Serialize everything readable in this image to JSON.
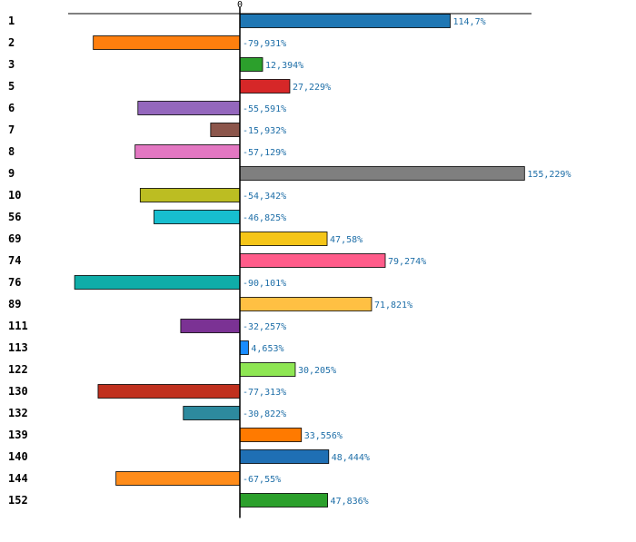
{
  "chart_data": {
    "type": "bar",
    "orientation": "horizontal",
    "title": "",
    "xlabel": "",
    "ylabel": "",
    "zero_tick_label": "0",
    "xlim": [
      -100,
      165
    ],
    "grid": false,
    "categories": [
      "1",
      "2",
      "3",
      "5",
      "6",
      "7",
      "8",
      "9",
      "10",
      "56",
      "69",
      "74",
      "76",
      "89",
      "111",
      "113",
      "122",
      "130",
      "132",
      "139",
      "140",
      "144",
      "152"
    ],
    "values": [
      114.7,
      -79.931,
      12.394,
      27.229,
      -55.591,
      -15.932,
      -57.129,
      155.229,
      -54.342,
      -46.825,
      47.58,
      79.274,
      -90.101,
      71.821,
      -32.257,
      4.653,
      30.205,
      -77.313,
      -30.822,
      33.556,
      48.444,
      -67.55,
      47.836
    ],
    "value_labels": [
      "114,7%",
      "-79,931%",
      "12,394%",
      "27,229%",
      "-55,591%",
      "-15,932%",
      "-57,129%",
      "155,229%",
      "-54,342%",
      "-46,825%",
      "47,58%",
      "79,274%",
      "-90,101%",
      "71,821%",
      "-32,257%",
      "4,653%",
      "30,205%",
      "-77,313%",
      "-30,822%",
      "33,556%",
      "48,444%",
      "-67,55%",
      "47,836%"
    ],
    "colors": [
      "#1f77b4",
      "#ff7f0e",
      "#2ca02c",
      "#d62728",
      "#9467bd",
      "#8c564b",
      "#e377c2",
      "#7f7f7f",
      "#bcbd22",
      "#17becf",
      "#f5c518",
      "#ff5c8a",
      "#0fada8",
      "#ffc043",
      "#7b3294",
      "#1a8cff",
      "#8ee653",
      "#c0301e",
      "#2d8a9e",
      "#ff7a00",
      "#1f6fb4",
      "#ff8c1a",
      "#2ca02c"
    ],
    "label_color": "#1f6fa8"
  }
}
